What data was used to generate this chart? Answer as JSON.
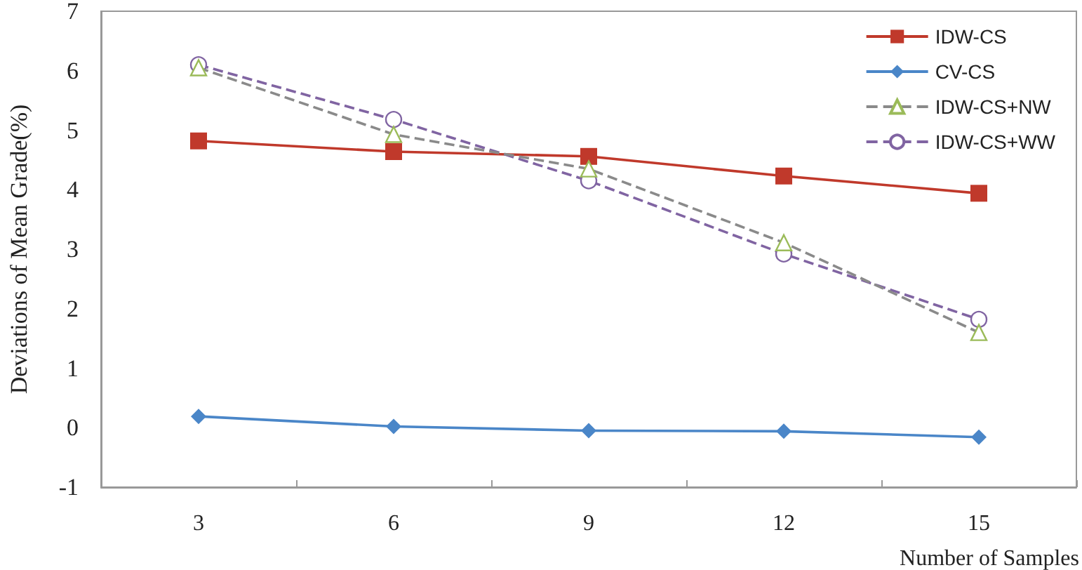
{
  "chart_data": {
    "type": "line",
    "xlabel": "Number of Samples",
    "ylabel": "Deviations of Mean Grade(%)",
    "categories": [
      "3",
      "6",
      "9",
      "12",
      "15"
    ],
    "series": [
      {
        "name": "IDW-CS",
        "color": "#c0392b",
        "marker": "square",
        "line_style": "solid",
        "values": [
          4.82,
          4.64,
          4.56,
          4.23,
          3.94
        ]
      },
      {
        "name": "CV-CS",
        "color": "#4a86c8",
        "marker": "diamond",
        "line_style": "solid",
        "values": [
          0.19,
          0.02,
          -0.05,
          -0.06,
          -0.16
        ]
      },
      {
        "name": "IDW-CS+NW",
        "color": "#9bbb59",
        "marker": "triangle",
        "line_style": "dashed",
        "values": [
          6.05,
          4.93,
          4.35,
          3.11,
          1.6
        ]
      },
      {
        "name": "IDW-CS+WW",
        "color": "#8064a2",
        "marker": "circle",
        "line_style": "dashed",
        "values": [
          6.1,
          5.18,
          4.15,
          2.92,
          1.82
        ]
      }
    ],
    "ylim": [
      -1,
      7
    ],
    "yticks": [
      -1,
      0,
      1,
      2,
      3,
      4,
      5,
      6,
      7
    ],
    "grid": false,
    "legend": "top right"
  }
}
